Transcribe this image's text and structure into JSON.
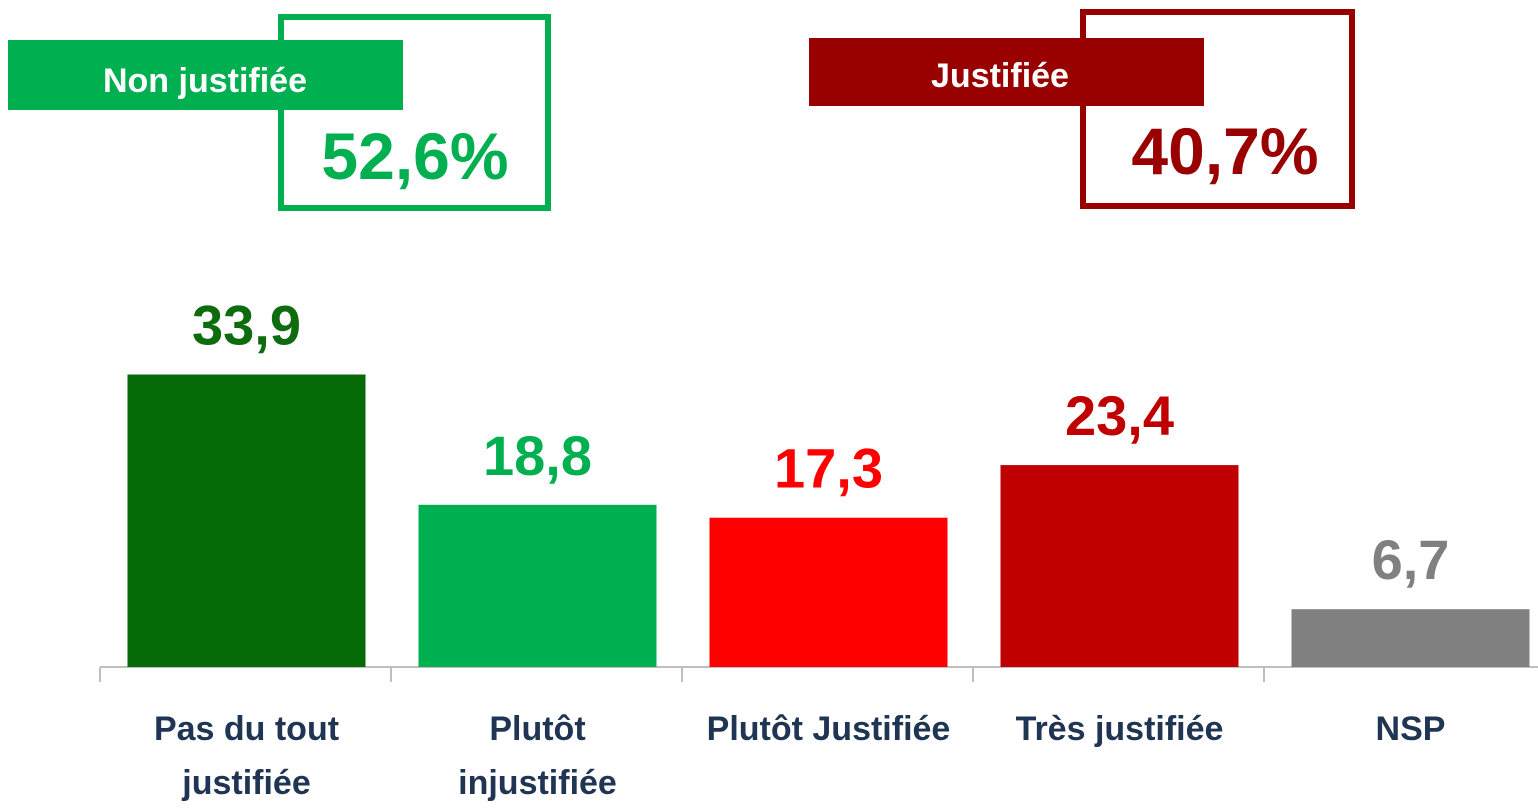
{
  "chart_data": {
    "type": "bar",
    "categories": [
      "Pas du tout justifiée",
      "Plutôt injustifiée",
      "Plutôt Justifiée",
      "Très justifiée",
      "NSP"
    ],
    "values": [
      33.9,
      18.8,
      17.3,
      23.4,
      6.7
    ],
    "value_labels": [
      "33,9",
      "18,8",
      "17,3",
      "23,4",
      "6,7"
    ],
    "colors": [
      "#066a06",
      "#00b050",
      "#ff0000",
      "#c00000",
      "#808080"
    ],
    "label_colors": [
      "#0e6b0e",
      "#00b050",
      "#ff0000",
      "#c00000",
      "#808080"
    ],
    "ylim": [
      0,
      35
    ],
    "annotations": [
      {
        "label": "Non justifiée",
        "value": 52.6,
        "value_label": "52,6%",
        "color": "#00b050"
      },
      {
        "label": "Justifiée",
        "value": 40.7,
        "value_label": "40,7%",
        "color": "#990000"
      }
    ]
  }
}
